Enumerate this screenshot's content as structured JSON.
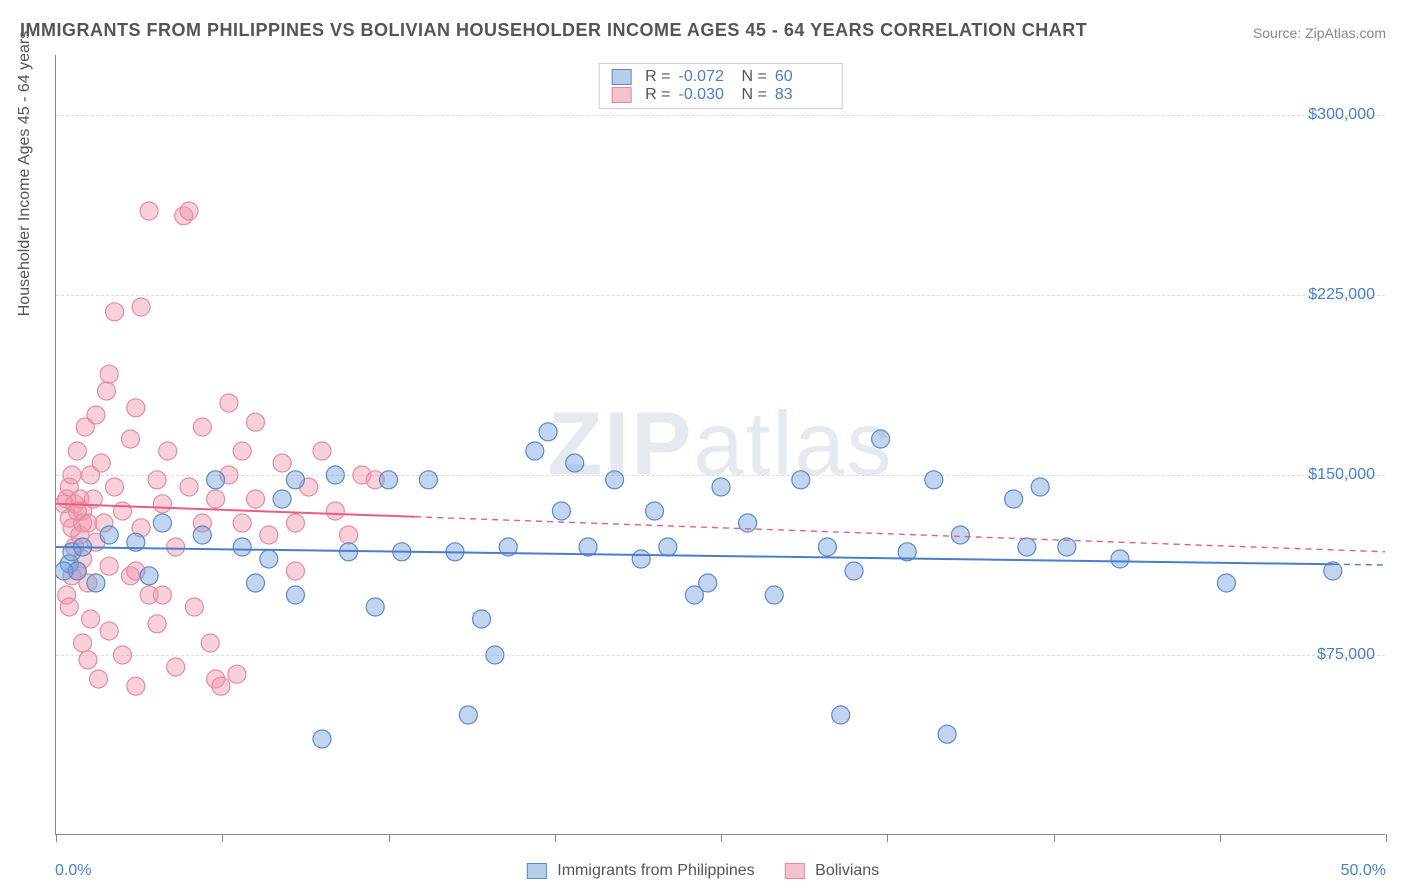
{
  "title": "IMMIGRANTS FROM PHILIPPINES VS BOLIVIAN HOUSEHOLDER INCOME AGES 45 - 64 YEARS CORRELATION CHART",
  "source": "Source: ZipAtlas.com",
  "watermark_bold": "ZIP",
  "watermark_light": "atlas",
  "y_axis_title": "Householder Income Ages 45 - 64 years",
  "chart": {
    "type": "scatter",
    "xlim": [
      0,
      50
    ],
    "ylim": [
      0,
      325000
    ],
    "x_min_label": "0.0%",
    "x_max_label": "50.0%",
    "y_ticks": [
      75000,
      150000,
      225000,
      300000
    ],
    "y_tick_labels": [
      "$75,000",
      "$150,000",
      "$225,000",
      "$300,000"
    ],
    "x_tick_positions": [
      0,
      6.25,
      12.5,
      18.75,
      25,
      31.25,
      37.5,
      43.75,
      50
    ],
    "background_color": "#ffffff",
    "grid_color": "#dddddd",
    "series": [
      {
        "name": "Immigrants from Philippines",
        "color_fill": "rgba(120,160,220,0.45)",
        "color_stroke": "#5a8acb",
        "swatch_fill": "#b6cdea",
        "swatch_border": "#5a8acb",
        "r_value": "-0.072",
        "n_value": "60",
        "marker_radius": 9,
        "trend": {
          "x1": 0,
          "y1": 120000,
          "x2": 50,
          "y2": 112500,
          "solid_until_x": 48,
          "color": "#4a7ec9",
          "width": 2
        },
        "points": [
          [
            0.5,
            113000
          ],
          [
            0.6,
            118000
          ],
          [
            0.8,
            110000
          ],
          [
            1.0,
            120000
          ],
          [
            1.5,
            105000
          ],
          [
            2.0,
            125000
          ],
          [
            3.0,
            122000
          ],
          [
            3.5,
            108000
          ],
          [
            4.0,
            130000
          ],
          [
            5.5,
            125000
          ],
          [
            6.0,
            148000
          ],
          [
            7.0,
            120000
          ],
          [
            7.5,
            105000
          ],
          [
            8.0,
            115000
          ],
          [
            8.5,
            140000
          ],
          [
            9.0,
            100000
          ],
          [
            9.0,
            148000
          ],
          [
            10.0,
            40000
          ],
          [
            10.5,
            150000
          ],
          [
            11.0,
            118000
          ],
          [
            12.0,
            95000
          ],
          [
            12.5,
            148000
          ],
          [
            13.0,
            118000
          ],
          [
            14.0,
            148000
          ],
          [
            15.0,
            118000
          ],
          [
            15.5,
            50000
          ],
          [
            16.0,
            90000
          ],
          [
            16.5,
            75000
          ],
          [
            17.0,
            120000
          ],
          [
            18.0,
            160000
          ],
          [
            18.5,
            168000
          ],
          [
            19.0,
            135000
          ],
          [
            19.5,
            155000
          ],
          [
            20.0,
            120000
          ],
          [
            21.0,
            148000
          ],
          [
            22.0,
            115000
          ],
          [
            22.5,
            135000
          ],
          [
            23.0,
            120000
          ],
          [
            24.0,
            100000
          ],
          [
            24.5,
            105000
          ],
          [
            25.0,
            145000
          ],
          [
            26.0,
            130000
          ],
          [
            27.0,
            100000
          ],
          [
            28.0,
            148000
          ],
          [
            29.0,
            120000
          ],
          [
            29.5,
            50000
          ],
          [
            30.0,
            110000
          ],
          [
            31.0,
            165000
          ],
          [
            32.0,
            118000
          ],
          [
            33.0,
            148000
          ],
          [
            33.5,
            42000
          ],
          [
            34.0,
            125000
          ],
          [
            36.0,
            140000
          ],
          [
            36.5,
            120000
          ],
          [
            37.0,
            145000
          ],
          [
            38.0,
            120000
          ],
          [
            40.0,
            115000
          ],
          [
            44.0,
            105000
          ],
          [
            48.0,
            110000
          ],
          [
            0.3,
            110000
          ]
        ]
      },
      {
        "name": "Bolivians",
        "color_fill": "rgba(240,150,170,0.45)",
        "color_stroke": "#e58ca0",
        "swatch_fill": "#f5c3ce",
        "swatch_border": "#e58ca0",
        "r_value": "-0.030",
        "n_value": "83",
        "marker_radius": 9,
        "trend": {
          "x1": 0,
          "y1": 138000,
          "x2": 50,
          "y2": 118000,
          "solid_until_x": 13.5,
          "color": "#e75d87",
          "width": 2
        },
        "points": [
          [
            0.3,
            138000
          ],
          [
            0.4,
            140000
          ],
          [
            0.5,
            132000
          ],
          [
            0.5,
            145000
          ],
          [
            0.6,
            128000
          ],
          [
            0.6,
            150000
          ],
          [
            0.7,
            120000
          ],
          [
            0.7,
            138000
          ],
          [
            0.8,
            110000
          ],
          [
            0.8,
            160000
          ],
          [
            0.9,
            125000
          ],
          [
            0.9,
            140000
          ],
          [
            1.0,
            135000
          ],
          [
            1.0,
            115000
          ],
          [
            1.1,
            170000
          ],
          [
            1.2,
            130000
          ],
          [
            1.2,
            105000
          ],
          [
            1.3,
            150000
          ],
          [
            1.3,
            90000
          ],
          [
            1.4,
            140000
          ],
          [
            1.5,
            175000
          ],
          [
            1.5,
            122000
          ],
          [
            1.6,
            65000
          ],
          [
            1.7,
            155000
          ],
          [
            1.8,
            130000
          ],
          [
            1.9,
            185000
          ],
          [
            2.0,
            192000
          ],
          [
            2.0,
            112000
          ],
          [
            2.2,
            145000
          ],
          [
            2.2,
            218000
          ],
          [
            2.5,
            135000
          ],
          [
            2.5,
            75000
          ],
          [
            2.8,
            165000
          ],
          [
            2.8,
            108000
          ],
          [
            3.0,
            178000
          ],
          [
            3.0,
            62000
          ],
          [
            3.2,
            128000
          ],
          [
            3.2,
            220000
          ],
          [
            3.5,
            100000
          ],
          [
            3.5,
            260000
          ],
          [
            3.8,
            148000
          ],
          [
            3.8,
            88000
          ],
          [
            4.0,
            138000
          ],
          [
            4.2,
            160000
          ],
          [
            4.5,
            120000
          ],
          [
            4.5,
            70000
          ],
          [
            4.8,
            258000
          ],
          [
            5.0,
            145000
          ],
          [
            5.0,
            260000
          ],
          [
            5.2,
            95000
          ],
          [
            5.5,
            130000
          ],
          [
            5.5,
            170000
          ],
          [
            5.8,
            80000
          ],
          [
            6.0,
            65000
          ],
          [
            6.0,
            140000
          ],
          [
            6.2,
            62000
          ],
          [
            6.5,
            150000
          ],
          [
            6.5,
            180000
          ],
          [
            6.8,
            67000
          ],
          [
            7.0,
            130000
          ],
          [
            7.0,
            160000
          ],
          [
            7.5,
            140000
          ],
          [
            7.5,
            172000
          ],
          [
            8.0,
            125000
          ],
          [
            8.5,
            155000
          ],
          [
            9.0,
            130000
          ],
          [
            9.0,
            110000
          ],
          [
            9.5,
            145000
          ],
          [
            10.0,
            160000
          ],
          [
            10.5,
            135000
          ],
          [
            11.0,
            125000
          ],
          [
            11.5,
            150000
          ],
          [
            12.0,
            148000
          ],
          [
            0.4,
            100000
          ],
          [
            0.5,
            95000
          ],
          [
            0.6,
            108000
          ],
          [
            1.0,
            80000
          ],
          [
            1.2,
            73000
          ],
          [
            2.0,
            85000
          ],
          [
            3.0,
            110000
          ],
          [
            4.0,
            100000
          ],
          [
            1.0,
            130000
          ],
          [
            0.8,
            135000
          ]
        ]
      }
    ]
  },
  "title_color": "#555555",
  "axis_label_color": "#4a7ec9"
}
